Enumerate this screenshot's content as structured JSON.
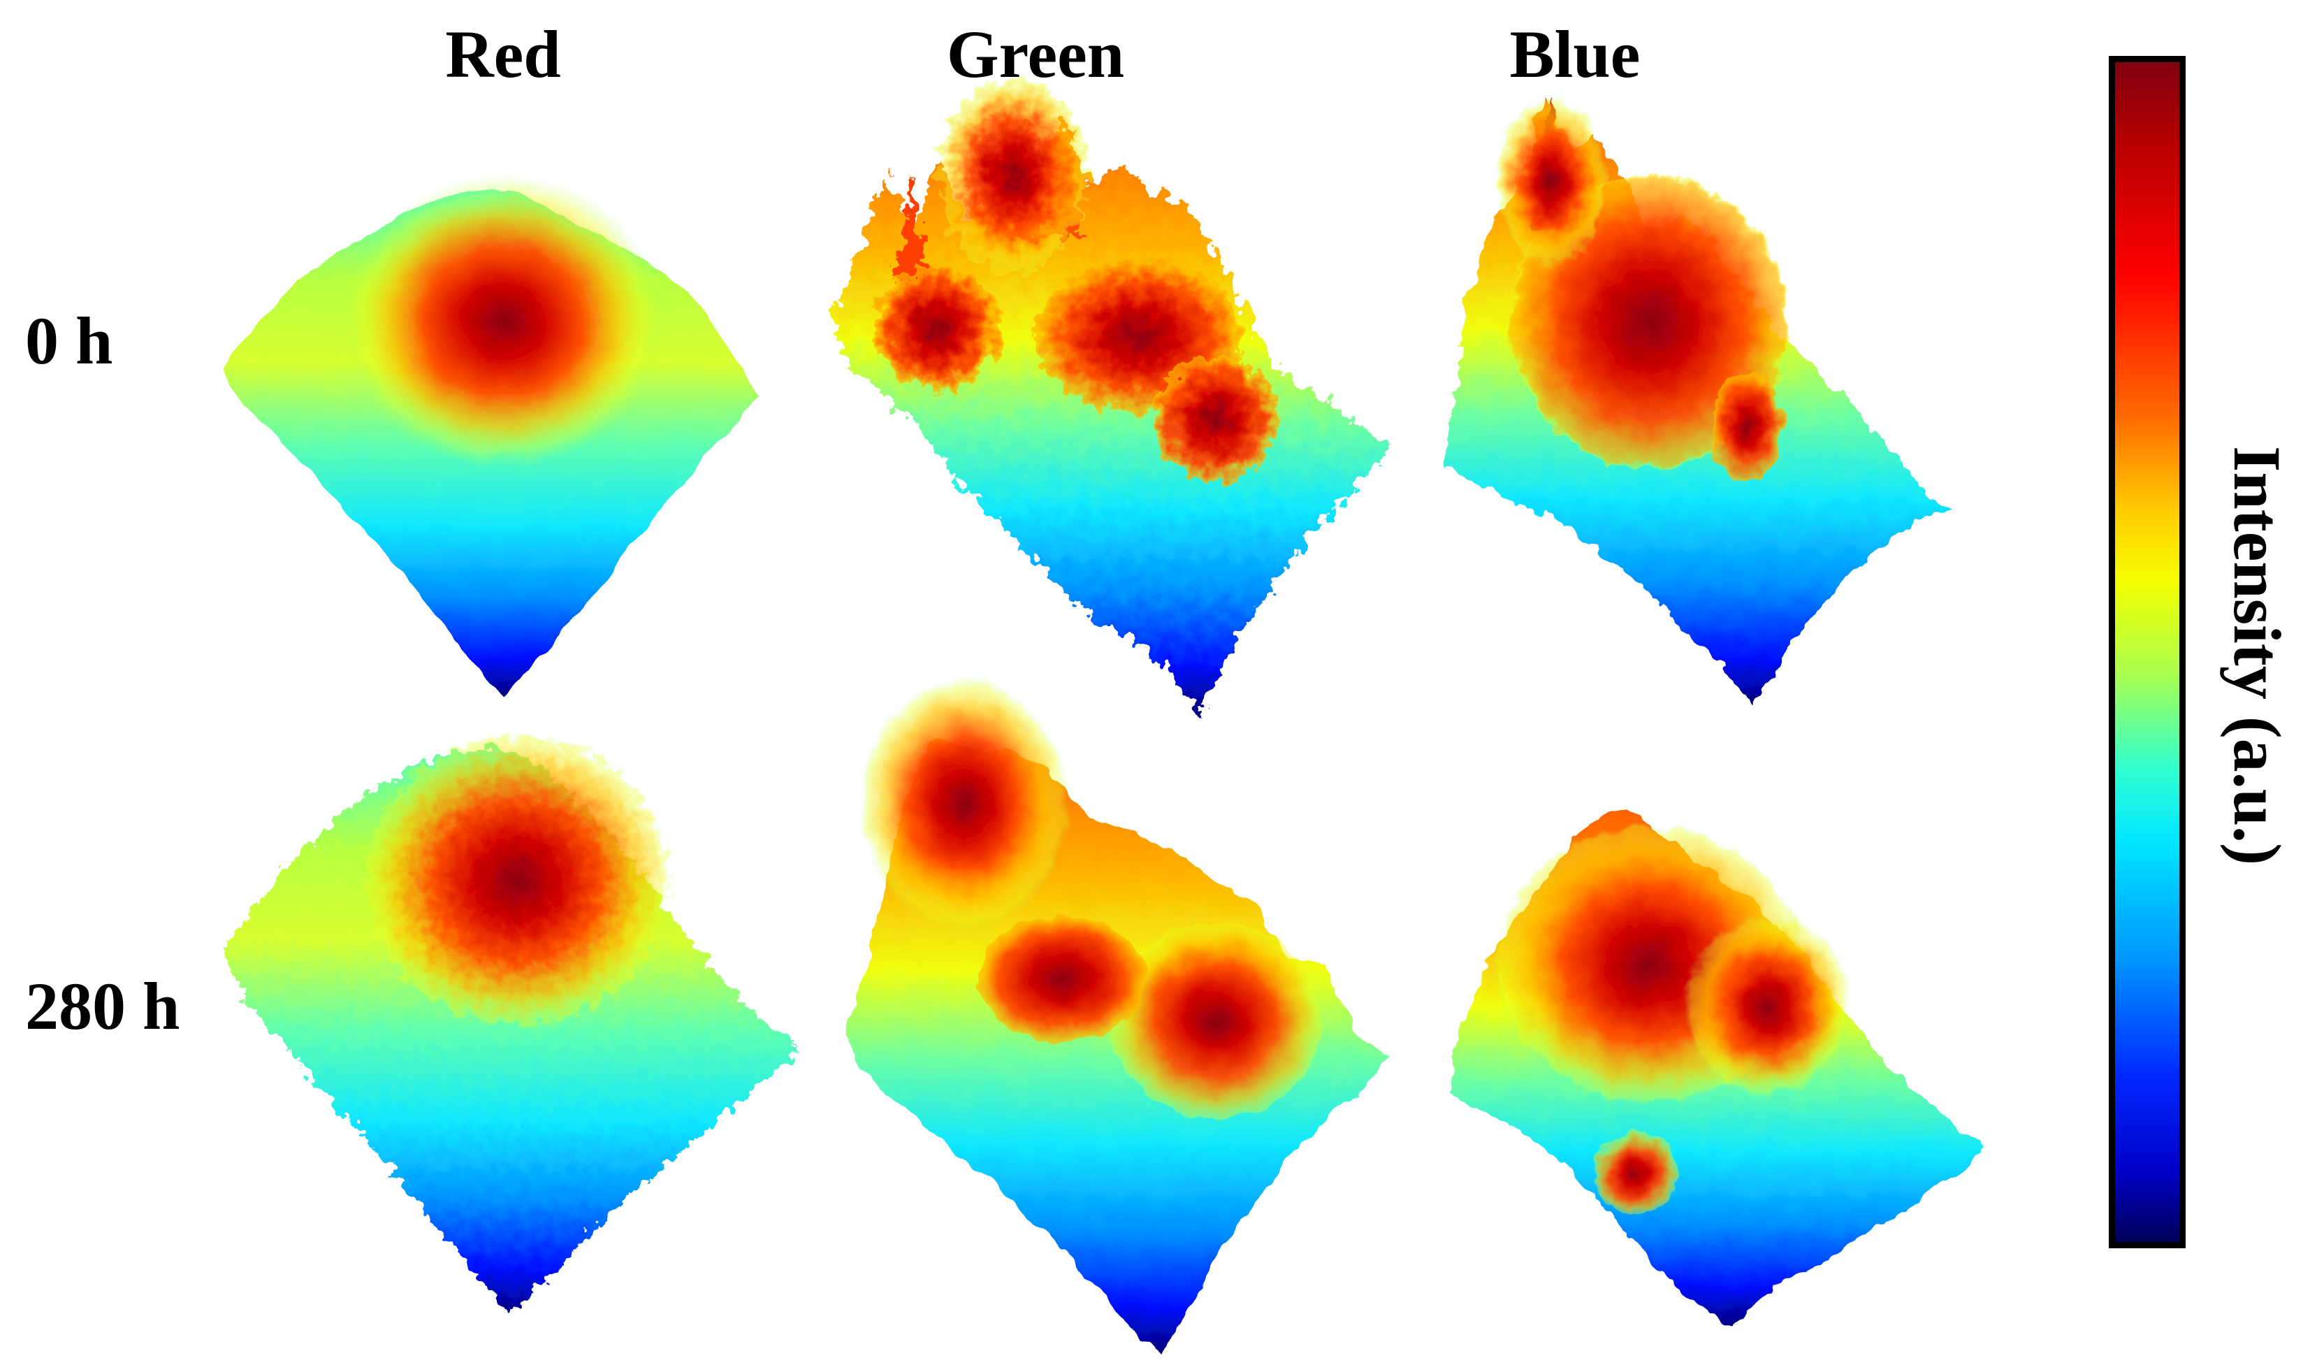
{
  "columns": [
    "Red",
    "Green",
    "Blue"
  ],
  "rows": [
    "0 h",
    "280 h"
  ],
  "colorbar": {
    "label": "Intensity (a.u.)",
    "colormap": "jet",
    "stops": [
      "#00005a",
      "#0000c8",
      "#0028ff",
      "#0096ff",
      "#00e6ff",
      "#30ffd2",
      "#a8ff50",
      "#f5ff00",
      "#ffcc00",
      "#ff6a00",
      "#ff0000",
      "#b80000",
      "#80000f"
    ]
  },
  "panels": [
    {
      "row": "0 h",
      "column": "Red",
      "description": "smooth single central peak"
    },
    {
      "row": "0 h",
      "column": "Green",
      "description": "noisy surface with many spikes"
    },
    {
      "row": "0 h",
      "column": "Blue",
      "description": "broad peak with spikes at edges"
    },
    {
      "row": "280 h",
      "column": "Red",
      "description": "central peak with rough surface"
    },
    {
      "row": "280 h",
      "column": "Green",
      "description": "ridged surface with high left edge"
    },
    {
      "row": "280 h",
      "column": "Blue",
      "description": "high central region with secondary peak"
    }
  ]
}
